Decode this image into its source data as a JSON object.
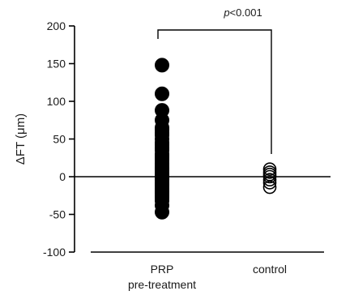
{
  "chart_data": {
    "type": "scatter",
    "title": "",
    "xlabel": "",
    "ylabel": "ΔFT (μm)",
    "ylim": [
      -100,
      200
    ],
    "yticks": [
      200,
      150,
      100,
      50,
      0,
      -50,
      -100
    ],
    "grid": false,
    "legend": "none",
    "reference_line_y": 0,
    "categories": [
      {
        "label_lines": [
          "PRP",
          "pre-treatment"
        ]
      },
      {
        "label_lines": [
          "control"
        ]
      }
    ],
    "series": [
      {
        "category_index": 0,
        "marker": "filled-circle",
        "color": "#000000",
        "values": [
          148,
          110,
          88,
          75,
          65,
          62,
          58,
          55,
          50,
          45,
          42,
          38,
          35,
          30,
          28,
          25,
          22,
          18,
          15,
          12,
          10,
          8,
          5,
          3,
          0,
          -3,
          -5,
          -8,
          -10,
          -12,
          -15,
          -18,
          -20,
          -22,
          -25,
          -28,
          -32,
          -38,
          -47
        ]
      },
      {
        "category_index": 1,
        "marker": "open-circle",
        "color": "#000000",
        "values": [
          10,
          6,
          3,
          0,
          -4,
          -8,
          -14
        ]
      }
    ],
    "annotation": {
      "text_italic": "p",
      "text_rest": "<0.001",
      "between_categories": [
        0,
        1
      ]
    }
  }
}
